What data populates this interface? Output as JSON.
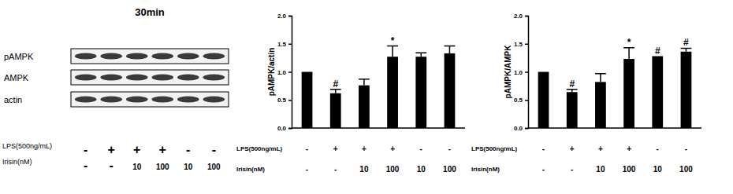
{
  "blot": {
    "title": "30min",
    "rows": [
      "pAMPK",
      "AMPK",
      "actin"
    ],
    "treatments": [
      {
        "label": "LPS(500ng/mL)",
        "values": [
          "-",
          "+",
          "+",
          "+",
          "-",
          "-"
        ]
      },
      {
        "label": "Irisin(nM)",
        "values": [
          "-",
          "-",
          "10",
          "100",
          "10",
          "100"
        ]
      }
    ]
  },
  "chart_data": [
    {
      "type": "bar",
      "y_label": "pAMPK/actin",
      "categories": [
        null,
        null,
        null,
        null,
        null,
        null
      ],
      "values": [
        1.0,
        0.62,
        0.76,
        1.27,
        1.27,
        1.33
      ],
      "errors": [
        0,
        0.07,
        0.11,
        0.19,
        0.07,
        0.13
      ],
      "significance": [
        null,
        "#",
        null,
        "*",
        null,
        null
      ],
      "color": "#000000",
      "ylim": [
        0,
        2
      ],
      "yticks": [
        {
          "value": 0,
          "label": "0.0"
        },
        {
          "value": 0.5,
          "label": "0.5"
        },
        {
          "value": 1,
          "label": "1.0"
        },
        {
          "value": 1.5,
          "label": "1.5"
        },
        {
          "value": 2,
          "label": "2.0"
        }
      ],
      "treatments": [
        {
          "label": "LPS(500ng/mL)",
          "values": [
            "-",
            "+",
            "+",
            "+",
            "-",
            "-"
          ]
        },
        {
          "label": "Irisin(nM)",
          "values": [
            "-",
            "-",
            "10",
            "100",
            "10",
            "100"
          ]
        }
      ]
    },
    {
      "type": "bar",
      "y_label": "pAMPK/AMPK",
      "categories": [
        null,
        null,
        null,
        null,
        null,
        null
      ],
      "values": [
        1.0,
        0.64,
        0.82,
        1.23,
        1.26,
        1.36
      ],
      "errors": [
        0,
        0.05,
        0.15,
        0.2,
        0.01,
        0.06
      ],
      "significance": [
        null,
        "#",
        null,
        "*",
        "#",
        "#"
      ],
      "color": "#000000",
      "ylim": [
        0,
        2
      ],
      "yticks": [
        {
          "value": 0,
          "label": "0.0"
        },
        {
          "value": 0.5,
          "label": "0.5"
        },
        {
          "value": 1,
          "label": "1.0"
        },
        {
          "value": 1.5,
          "label": "1.5"
        },
        {
          "value": 2,
          "label": "2.0"
        }
      ],
      "treatments": [
        {
          "label": "LPS(500ng/mL)",
          "values": [
            "-",
            "+",
            "+",
            "+",
            "-",
            "-"
          ]
        },
        {
          "label": "Irisin(nM)",
          "values": [
            "-",
            "-",
            "10",
            "100",
            "10",
            "100"
          ]
        }
      ]
    }
  ]
}
